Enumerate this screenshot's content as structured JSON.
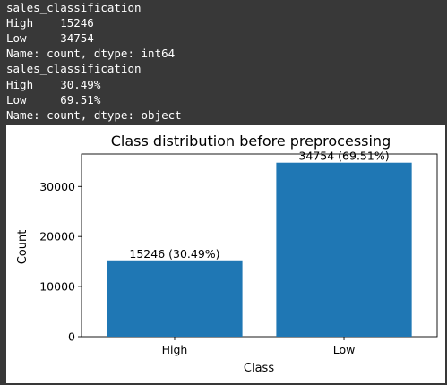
{
  "console": {
    "lines": [
      "sales_classification",
      "High    15246",
      "Low     34754",
      "Name: count, dtype: int64",
      "sales_classification",
      "High    30.49%",
      "Low     69.51%",
      "Name: count, dtype: object"
    ]
  },
  "colors": {
    "console_background": "#383838",
    "console_text": "#ffffff",
    "bar_color": "#1f77b4",
    "figure_background": "#ffffff"
  },
  "chart_data": {
    "type": "bar",
    "title": "Class distribution before preprocessing",
    "xlabel": "Class",
    "ylabel": "Count",
    "categories": [
      "High",
      "Low"
    ],
    "values": [
      15246,
      34754
    ],
    "bar_labels": [
      "15246 (30.49%)",
      "34754 (69.51%)"
    ],
    "ylim": [
      0,
      36492
    ],
    "yticks": [
      0,
      10000,
      20000,
      30000
    ],
    "ytick_labels": [
      "0",
      "10000",
      "20000",
      "30000"
    ],
    "grid": false,
    "legend": "none"
  }
}
